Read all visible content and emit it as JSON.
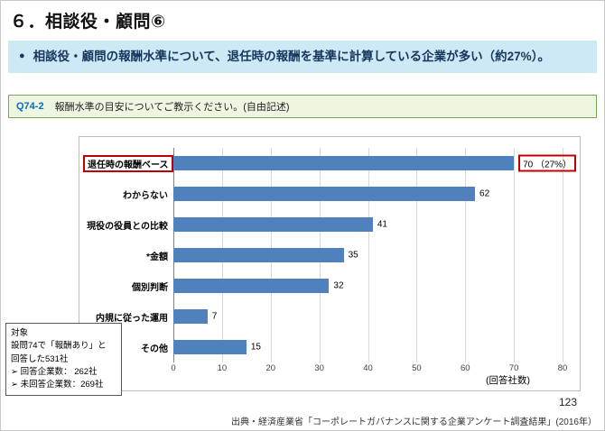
{
  "slide": {
    "title": "６．相談役・顧問⑥",
    "page_number": "123",
    "source": "出典・経済産業省「コーポレートガバナンスに関する企業アンケート調査結果」(2016年）"
  },
  "summary": {
    "bullet": "●",
    "text": "相談役・顧問の報酬水準について、退任時の報酬を基準に計算している企業が多い（約27%）。"
  },
  "question": {
    "label": "Q74-2",
    "text": "報酬水準の目安についてご教示ください。(自由記述)"
  },
  "chart_data": {
    "type": "bar",
    "orientation": "horizontal",
    "title": "",
    "categories": [
      "退任時の報酬ベース",
      "わからない",
      "現役の役員との比較",
      "*金額",
      "個別判断",
      "内規に従った運用",
      "その他"
    ],
    "values": [
      70,
      62,
      41,
      35,
      32,
      7,
      15
    ],
    "value_labels": [
      "70 （27%）",
      "62",
      "41",
      "35",
      "32",
      "7",
      "15"
    ],
    "highlight_index": 0,
    "x_ticks": [
      0,
      10,
      20,
      30,
      40,
      50,
      60,
      70,
      80
    ],
    "xlim": [
      0,
      80
    ],
    "axis_label": "(回答社数)",
    "bar_color": "#4f81bd",
    "highlight_color": "#c00000",
    "grid": true,
    "legend": "none"
  },
  "note_box": {
    "lines": [
      "対象",
      "設問74で「報酬あり」と",
      "回答した531社",
      "➢ 回答企業数： 262社",
      "➢ 未回答企業数：269社"
    ]
  }
}
